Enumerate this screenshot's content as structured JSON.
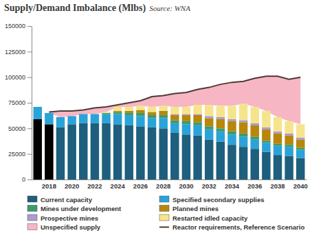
{
  "chart_data": {
    "type": "bar",
    "stacked": true,
    "title": "Supply/Demand Imbalance (Mlbs)",
    "subtitle": "Source: WNA",
    "categories": [
      null,
      "2018",
      null,
      "2020",
      null,
      "2022",
      null,
      "2024",
      null,
      "2026",
      null,
      "2028",
      null,
      "2030",
      null,
      "2032",
      null,
      "2034",
      null,
      "2036",
      null,
      "2038",
      null,
      "2040"
    ],
    "ylim": [
      0,
      150000
    ],
    "yticks": [
      0,
      25000,
      50000,
      75000,
      100000,
      125000,
      150000
    ],
    "grid": false,
    "legend": "bottom",
    "series": [
      {
        "name": "Current capacity",
        "type": "bar",
        "color": "#1d5f7d",
        "colors": [
          "#000000",
          "#000000",
          "#1d5f7d",
          "#1d5f7d",
          "#1d5f7d",
          "#1d5f7d",
          "#1d5f7d",
          "#1d5f7d",
          "#1d5f7d",
          "#1d5f7d",
          "#1d5f7d",
          "#1d5f7d",
          "#1d5f7d",
          "#1d5f7d",
          "#1d5f7d",
          "#1d5f7d",
          "#1d5f7d",
          "#1d5f7d",
          "#1d5f7d",
          "#1d5f7d",
          "#1d5f7d",
          "#1d5f7d",
          "#1d5f7d",
          "#1d5f7d"
        ],
        "values": [
          59000,
          54000,
          51000,
          54000,
          55000,
          55000,
          55000,
          54000,
          53000,
          52000,
          51000,
          50000,
          46000,
          44000,
          43000,
          39000,
          37000,
          34000,
          32000,
          30000,
          27000,
          24000,
          23000,
          21000
        ]
      },
      {
        "name": "Specified secondary supplies",
        "type": "bar",
        "color": "#2aa3d8",
        "values": [
          12000,
          11000,
          10000,
          8000,
          9000,
          9000,
          9000,
          10000,
          10000,
          10000,
          9000,
          10000,
          9000,
          10000,
          10000,
          10000,
          10000,
          10000,
          10000,
          9000,
          9000,
          9000,
          9000,
          8000
        ]
      },
      {
        "name": "Mines under development",
        "type": "bar",
        "color": "#3c9a6e",
        "values": [
          0,
          0,
          0,
          0,
          0,
          0,
          1000,
          2000,
          2000,
          3000,
          3000,
          3000,
          3000,
          3000,
          3000,
          3000,
          3000,
          3000,
          3000,
          3000,
          2000,
          2000,
          2000,
          2000
        ]
      },
      {
        "name": "Planned mines",
        "type": "bar",
        "color": "#b8860b",
        "values": [
          0,
          0,
          0,
          0,
          0,
          0,
          0,
          1000,
          2000,
          3000,
          3000,
          4000,
          5000,
          6000,
          7000,
          8000,
          9000,
          10000,
          11000,
          11000,
          11000,
          10000,
          9000,
          8000
        ]
      },
      {
        "name": "Prospective mines",
        "type": "bar",
        "color": "#a99bd3",
        "values": [
          0,
          0,
          0,
          0,
          0,
          0,
          0,
          0,
          0,
          0,
          0,
          0,
          1000,
          1000,
          1000,
          2000,
          2000,
          2000,
          2000,
          2000,
          2000,
          2000,
          2000,
          2000
        ]
      },
      {
        "name": "Restarted idled capacity",
        "type": "bar",
        "color": "#f6e48c",
        "values": [
          0,
          0,
          0,
          0,
          0,
          0,
          1000,
          4000,
          4000,
          4000,
          5000,
          5000,
          7000,
          7000,
          9000,
          11000,
          11000,
          13000,
          16000,
          16000,
          16000,
          14000,
          12000,
          13000
        ]
      },
      {
        "name": "Unspecified supply",
        "type": "area",
        "color": "#f7b6c3",
        "values": [
          null,
          1000,
          6000,
          5000,
          4000,
          6000,
          5000,
          2000,
          4000,
          5000,
          10000,
          10000,
          13000,
          14000,
          15000,
          17000,
          21000,
          23000,
          22000,
          28000,
          34000,
          40000,
          41000,
          46000
        ]
      },
      {
        "name": "Reactor requirements, Reference Scenario",
        "type": "line",
        "color": "#4a3b36",
        "values": [
          null,
          66000,
          67000,
          67000,
          68000,
          70000,
          71000,
          73000,
          75000,
          77000,
          81000,
          82000,
          84000,
          85000,
          88000,
          90000,
          93000,
          95000,
          96000,
          99000,
          101000,
          101000,
          98000,
          100000
        ]
      }
    ]
  }
}
